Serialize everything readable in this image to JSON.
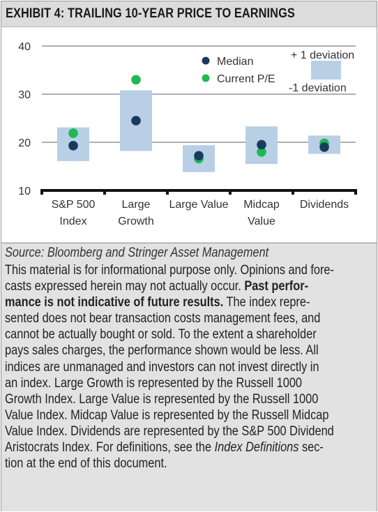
{
  "exhibit": {
    "title": "EXHIBIT 4: TRAILING 10-YEAR PRICE TO EARNINGS"
  },
  "colors": {
    "median": "#1a3a5c",
    "current_pe": "#1db954",
    "deviation_band": "#b8cfe6",
    "gridline": "#7f7f7f"
  },
  "chart_data": {
    "type": "scatter",
    "title": "",
    "xlabel": "",
    "ylabel": "",
    "ylim": [
      10,
      40
    ],
    "yticks": [
      10,
      20,
      30,
      40
    ],
    "grid": true,
    "legend_position": "top-right",
    "categories": [
      {
        "label_lines": [
          "S&P 500",
          "Index"
        ]
      },
      {
        "label_lines": [
          "Large",
          "Growth"
        ]
      },
      {
        "label_lines": [
          "Large Value"
        ]
      },
      {
        "label_lines": [
          "Midcap",
          "Value"
        ]
      },
      {
        "label_lines": [
          "Dividends"
        ]
      }
    ],
    "series": [
      {
        "name": "Median",
        "values": [
          19.3,
          24.5,
          17.2,
          19.5,
          19.0
        ]
      },
      {
        "name": "Current P/E",
        "values": [
          21.9,
          33.0,
          16.6,
          18.0,
          19.8
        ]
      }
    ],
    "bands": {
      "upper_label": "+ 1 deviation",
      "lower_label": "-1 deviation",
      "upper": [
        23.1,
        30.8,
        19.4,
        23.3,
        21.4
      ],
      "lower": [
        16.1,
        18.2,
        13.8,
        15.5,
        17.6
      ]
    }
  },
  "notes": {
    "source": "Source: Bloomberg and Stringer Asset Management",
    "lines": [
      [
        {
          "t": "This material is for informational purpose only. Opinions and fore-"
        }
      ],
      [
        {
          "t": "casts expressed herein may not actually occur. "
        },
        {
          "t": "Past perfor-",
          "s": "b"
        }
      ],
      [
        {
          "t": "mance is not indicative of future results.",
          "s": "b"
        },
        {
          "t": " The index repre-"
        }
      ],
      [
        {
          "t": "sented does not bear transaction costs management fees, and"
        }
      ],
      [
        {
          "t": "cannot be actually bought or sold. To the extent a shareholder"
        }
      ],
      [
        {
          "t": "pays sales charges, the performance shown would be less. All"
        }
      ],
      [
        {
          "t": "indices are unmanaged and investors can not invest directly in"
        }
      ],
      [
        {
          "t": "an index. Large Growth is represented by the Russell 1000"
        }
      ],
      [
        {
          "t": "Growth Index. Large Value is represented by the Russell 1000"
        }
      ],
      [
        {
          "t": "Value Index. Midcap Value is represented by the Russell Midcap"
        }
      ],
      [
        {
          "t": "Value Index. Dividends are represented by the S&P 500 Dividend"
        }
      ],
      [
        {
          "t": "Aristocrats Index. For definitions, see the "
        },
        {
          "t": "Index Definitions",
          "s": "i"
        },
        {
          "t": " sec-"
        }
      ],
      [
        {
          "t": "tion at the end of this document."
        }
      ]
    ]
  }
}
